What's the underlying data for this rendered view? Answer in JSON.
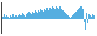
{
  "chart_data": {
    "type": "bar",
    "categories": [
      null,
      null,
      null,
      null,
      null,
      null,
      null,
      null,
      null,
      null,
      null,
      null,
      null,
      null,
      null,
      null,
      null,
      null,
      null,
      null,
      null,
      null,
      null,
      null,
      null,
      null,
      null,
      null,
      null,
      null,
      null,
      null,
      null,
      null,
      null,
      null,
      null,
      null,
      null,
      null,
      null,
      null,
      null,
      null,
      null,
      null,
      null,
      null,
      null,
      null,
      null,
      null,
      null,
      null,
      null,
      null,
      null,
      null,
      null,
      null,
      null,
      null,
      null,
      null,
      null,
      null,
      null,
      null,
      null,
      null,
      null,
      null,
      null,
      null,
      null,
      null,
      null,
      null,
      null,
      null
    ],
    "values": [
      3,
      2,
      4,
      2,
      3,
      2,
      1,
      3,
      2,
      4,
      2,
      1,
      3,
      2,
      3,
      4,
      3,
      5,
      4,
      3,
      2,
      4,
      5,
      6,
      5,
      4,
      6,
      5,
      7,
      6,
      5,
      7,
      6,
      8,
      7,
      6,
      8,
      7,
      9,
      8,
      7,
      9,
      8,
      10,
      9,
      8,
      10,
      9,
      8,
      10,
      9,
      8,
      7,
      6,
      5,
      4,
      3,
      2,
      1,
      2,
      3,
      4,
      5,
      6,
      7,
      8,
      9,
      10,
      9,
      8,
      -2,
      -8,
      5,
      -3,
      4,
      3,
      2,
      4,
      3,
      5
    ],
    "color": "#55aee0",
    "ylim": [
      -12,
      14
    ],
    "grid": false,
    "tick_labels": false
  }
}
